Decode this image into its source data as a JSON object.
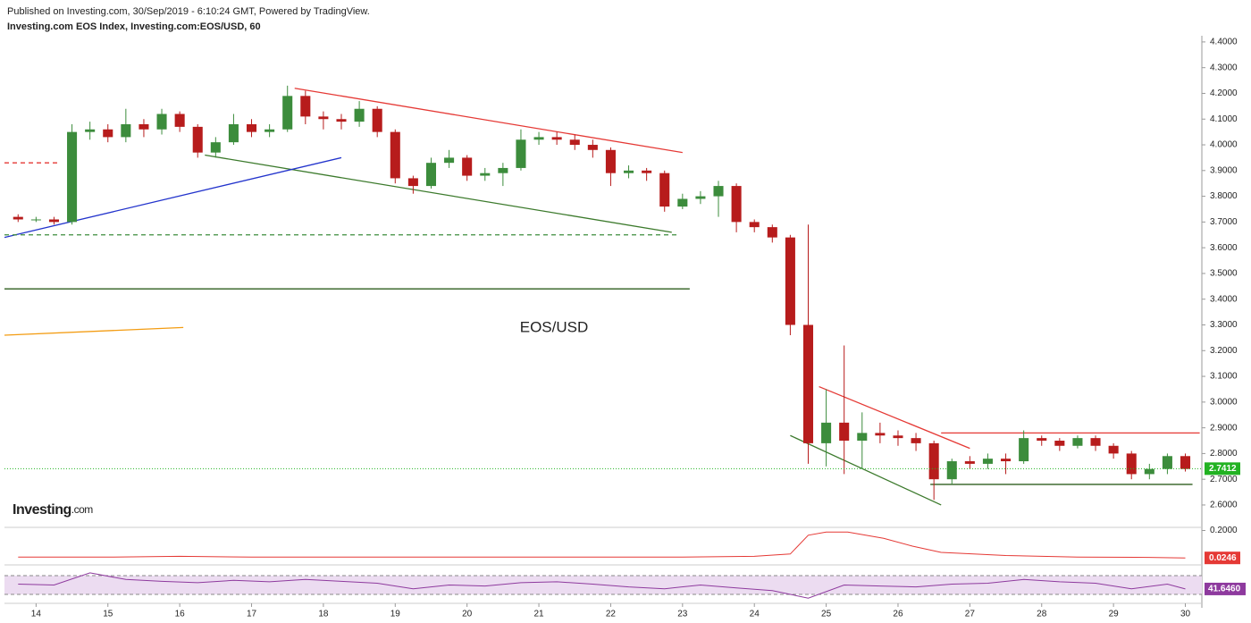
{
  "chart_data": {
    "type": "candlestick",
    "title": "Published on Investing.com, 30/Sep/2019 - 6:10:24 GMT, Powered by TradingView.",
    "subtitle": "Investing.com EOS Index, Investing.com:EOS/USD, 60",
    "watermark": "EOS/USD",
    "logo": {
      "brand": "Investing",
      "suffix": ".com"
    },
    "up_color": "#3c8c3c",
    "down_color": "#b71c1c",
    "x": [
      13.75,
      14,
      14.25,
      14.5,
      14.75,
      15,
      15.25,
      15.5,
      15.75,
      16,
      16.25,
      16.5,
      16.75,
      17,
      17.25,
      17.5,
      17.75,
      18,
      18.25,
      18.5,
      18.75,
      19,
      19.25,
      19.5,
      19.75,
      20,
      20.25,
      20.5,
      20.75,
      21,
      21.25,
      21.5,
      21.75,
      22,
      22.25,
      22.5,
      22.75,
      23,
      23.25,
      23.5,
      23.75,
      24,
      24.25,
      24.5,
      24.75,
      25,
      25.25,
      25.5,
      25.75,
      26,
      26.25,
      26.5,
      26.75,
      27,
      27.25,
      27.5,
      27.75,
      28,
      28.25,
      28.5,
      28.75,
      29,
      29.25,
      29.5,
      29.75,
      30
    ],
    "open": [
      3.72,
      3.71,
      3.71,
      3.7,
      4.05,
      4.06,
      4.03,
      4.08,
      4.06,
      4.12,
      4.07,
      3.97,
      4.01,
      4.08,
      4.05,
      4.06,
      4.19,
      4.11,
      4.1,
      4.09,
      4.14,
      4.05,
      3.87,
      3.84,
      3.93,
      3.95,
      3.88,
      3.89,
      3.91,
      4.02,
      4.03,
      4.02,
      4.0,
      3.98,
      3.89,
      3.9,
      3.89,
      3.76,
      3.79,
      3.8,
      3.84,
      3.7,
      3.68,
      3.64,
      3.3,
      2.84,
      2.92,
      2.85,
      2.88,
      2.87,
      2.86,
      2.84,
      2.7,
      2.77,
      2.76,
      2.78,
      2.77,
      2.86,
      2.85,
      2.83,
      2.86,
      2.83,
      2.8,
      2.72,
      2.74,
      2.79
    ],
    "high": [
      3.73,
      3.72,
      3.72,
      4.08,
      4.09,
      4.08,
      4.14,
      4.1,
      4.14,
      4.13,
      4.08,
      4.03,
      4.12,
      4.1,
      4.08,
      4.23,
      4.21,
      4.13,
      4.12,
      4.17,
      4.15,
      4.06,
      3.88,
      3.95,
      3.98,
      3.96,
      3.91,
      3.93,
      4.06,
      4.05,
      4.05,
      4.04,
      4.02,
      3.99,
      3.92,
      3.91,
      3.9,
      3.81,
      3.82,
      3.86,
      3.85,
      3.71,
      3.69,
      3.65,
      3.69,
      3.05,
      3.22,
      2.96,
      2.92,
      2.89,
      2.88,
      2.85,
      2.78,
      2.79,
      2.8,
      2.8,
      2.89,
      2.87,
      2.86,
      2.87,
      2.87,
      2.84,
      2.81,
      2.76,
      2.8,
      2.8
    ],
    "low": [
      3.7,
      3.7,
      3.69,
      3.69,
      4.02,
      4.01,
      4.01,
      4.03,
      4.04,
      4.05,
      3.95,
      3.95,
      4.0,
      4.03,
      4.03,
      4.05,
      4.08,
      4.06,
      4.06,
      4.07,
      4.03,
      3.85,
      3.81,
      3.83,
      3.91,
      3.86,
      3.86,
      3.84,
      3.9,
      4.0,
      4.0,
      3.98,
      3.95,
      3.84,
      3.87,
      3.86,
      3.74,
      3.75,
      3.77,
      3.72,
      3.66,
      3.66,
      3.62,
      3.26,
      2.76,
      2.75,
      2.72,
      2.74,
      2.84,
      2.83,
      2.81,
      2.62,
      2.68,
      2.74,
      2.74,
      2.72,
      2.76,
      2.83,
      2.81,
      2.82,
      2.81,
      2.78,
      2.7,
      2.7,
      2.72,
      2.73
    ],
    "close": [
      3.71,
      3.71,
      3.7,
      4.05,
      4.06,
      4.03,
      4.08,
      4.06,
      4.12,
      4.07,
      3.97,
      4.01,
      4.08,
      4.05,
      4.06,
      4.19,
      4.11,
      4.1,
      4.09,
      4.14,
      4.05,
      3.87,
      3.84,
      3.93,
      3.95,
      3.88,
      3.89,
      3.91,
      4.02,
      4.03,
      4.02,
      4.0,
      3.98,
      3.89,
      3.9,
      3.89,
      3.76,
      3.79,
      3.8,
      3.84,
      3.7,
      3.68,
      3.64,
      3.3,
      2.84,
      2.92,
      2.85,
      2.88,
      2.87,
      2.86,
      2.84,
      2.7,
      2.77,
      2.76,
      2.78,
      2.77,
      2.86,
      2.85,
      2.83,
      2.86,
      2.83,
      2.8,
      2.72,
      2.74,
      2.79,
      2.74
    ],
    "xlim": [
      13.56,
      30.23
    ],
    "xticks": [
      14,
      15,
      16,
      17,
      18,
      19,
      20,
      21,
      22,
      23,
      24,
      25,
      26,
      27,
      28,
      29,
      30
    ],
    "ylim": [
      2.513,
      4.424
    ],
    "yticks": [
      {
        "value": 2.6,
        "label": "2.6000"
      },
      {
        "value": 2.7,
        "label": "2.7000"
      },
      {
        "value": 2.8,
        "label": "2.8000"
      },
      {
        "value": 2.9,
        "label": "2.9000"
      },
      {
        "value": 3.0,
        "label": "3.0000"
      },
      {
        "value": 3.1,
        "label": "3.1000"
      },
      {
        "value": 3.2,
        "label": "3.2000"
      },
      {
        "value": 3.3,
        "label": "3.3000"
      },
      {
        "value": 3.4,
        "label": "3.4000"
      },
      {
        "value": 3.5,
        "label": "3.5000"
      },
      {
        "value": 3.6,
        "label": "3.6000"
      },
      {
        "value": 3.7,
        "label": "3.7000"
      },
      {
        "value": 3.8,
        "label": "3.8000"
      },
      {
        "value": 3.9,
        "label": "3.9000"
      },
      {
        "value": 4.0,
        "label": "4.0000"
      },
      {
        "value": 4.1,
        "label": "4.1000"
      },
      {
        "value": 4.2,
        "label": "4.2000"
      },
      {
        "value": 4.3,
        "label": "4.3000"
      },
      {
        "value": 4.4,
        "label": "4.4000"
      }
    ],
    "last_price": 2.7412,
    "last_price_color": "#22b222",
    "trendlines": [
      {
        "points": [
          [
            17.6,
            4.22
          ],
          [
            23.0,
            3.97
          ]
        ],
        "color": "#e53935",
        "dash": false
      },
      {
        "points": [
          [
            16.35,
            3.96
          ],
          [
            22.85,
            3.66
          ]
        ],
        "color": "#3c7a2c",
        "dash": false
      },
      {
        "points": [
          [
            13.56,
            3.64
          ],
          [
            18.25,
            3.95
          ]
        ],
        "color": "#2233cc",
        "dash": false
      },
      {
        "points": [
          [
            13.56,
            3.65
          ],
          [
            22.95,
            3.65
          ]
        ],
        "color": "#3c8c3c",
        "dash": true
      },
      {
        "points": [
          [
            13.56,
            3.44
          ],
          [
            23.1,
            3.44
          ]
        ],
        "color": "#2e5e1e",
        "dash": false
      },
      {
        "points": [
          [
            13.56,
            3.26
          ],
          [
            16.05,
            3.29
          ]
        ],
        "color": "#f39c12",
        "dash": false
      },
      {
        "points": [
          [
            13.56,
            3.93
          ],
          [
            14.3,
            3.93
          ]
        ],
        "color": "#e53935",
        "dash": true
      },
      {
        "points": [
          [
            24.9,
            3.06
          ],
          [
            27.0,
            2.82
          ]
        ],
        "color": "#e53935",
        "dash": false
      },
      {
        "points": [
          [
            24.5,
            2.87
          ],
          [
            26.6,
            2.6
          ]
        ],
        "color": "#3c7a2c",
        "dash": false
      },
      {
        "points": [
          [
            26.6,
            2.88
          ],
          [
            30.2,
            2.88
          ]
        ],
        "color": "#e53935",
        "dash": false
      },
      {
        "points": [
          [
            26.45,
            2.68
          ],
          [
            30.1,
            2.68
          ]
        ],
        "color": "#2e5e1e",
        "dash": false
      }
    ],
    "indicator": {
      "type": "line",
      "color": "#e53935",
      "x": [
        13.75,
        15,
        16,
        17,
        18,
        19,
        20,
        21,
        22,
        23,
        24,
        24.5,
        24.75,
        25,
        25.3,
        25.8,
        26.2,
        26.6,
        27.5,
        28.5,
        29.5,
        30
      ],
      "values": [
        0.03,
        0.03,
        0.035,
        0.03,
        0.03,
        0.03,
        0.03,
        0.03,
        0.03,
        0.03,
        0.035,
        0.05,
        0.17,
        0.19,
        0.19,
        0.15,
        0.1,
        0.06,
        0.04,
        0.03,
        0.028,
        0.0246
      ],
      "ylim": [
        -0.02,
        0.22
      ],
      "yticks": [
        {
          "value": 0.2,
          "label": "0.2000"
        }
      ],
      "last": 0.0246
    },
    "rsi": {
      "type": "line",
      "color": "#8e3a9e",
      "band_color": "#ecdcf1",
      "band": [
        30,
        70
      ],
      "x": [
        13.75,
        14.25,
        14.75,
        15.25,
        15.75,
        16.25,
        16.75,
        17.25,
        17.75,
        18.25,
        18.75,
        19.25,
        19.75,
        20.25,
        20.75,
        21.25,
        21.75,
        22.25,
        22.75,
        23.25,
        23.75,
        24.25,
        24.75,
        25.25,
        25.75,
        26.25,
        26.75,
        27.25,
        27.75,
        28.25,
        28.75,
        29.25,
        29.75,
        30
      ],
      "values": [
        52,
        50,
        76,
        62,
        58,
        55,
        60,
        57,
        62,
        58,
        54,
        42,
        50,
        48,
        55,
        57,
        52,
        46,
        42,
        50,
        44,
        38,
        22,
        50,
        48,
        46,
        52,
        54,
        62,
        57,
        54,
        42,
        52,
        41.646
      ],
      "ylim": [
        11,
        93
      ],
      "last": {
        "value": 41.646,
        "label": "41.6460"
      }
    }
  }
}
